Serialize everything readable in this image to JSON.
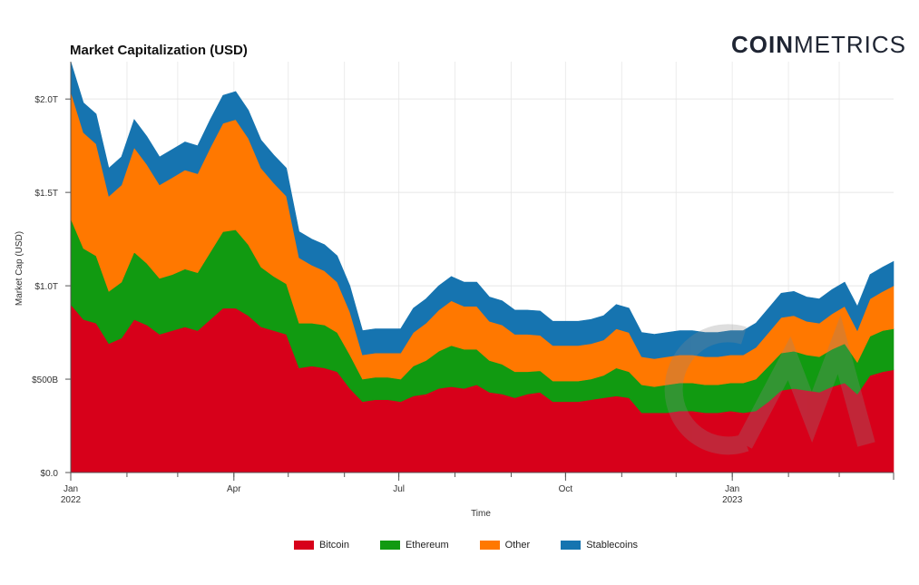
{
  "header": {
    "title": "Market Capitalization (USD)",
    "brand_bold": "COIN",
    "brand_light": "METRICS"
  },
  "chart_data": {
    "type": "area",
    "title": "Market Capitalization (USD)",
    "xlabel": "Time",
    "ylabel": "Market Cap (USD)",
    "stacked": true,
    "ylim": [
      0,
      2200000000000
    ],
    "y_ticks": [
      {
        "value": 0,
        "label": "$0.0"
      },
      {
        "value": 500000000000,
        "label": "$500B"
      },
      {
        "value": 1000000000000,
        "label": "$1.0T"
      },
      {
        "value": 1500000000000,
        "label": "$1.5T"
      },
      {
        "value": 2000000000000,
        "label": "$2.0T"
      }
    ],
    "x_ticks": [
      {
        "date": "2022-01-01",
        "label": "Jan",
        "sublabel": "2022"
      },
      {
        "date": "2022-04-01",
        "label": "Apr",
        "sublabel": ""
      },
      {
        "date": "2022-07-01",
        "label": "Jul",
        "sublabel": ""
      },
      {
        "date": "2022-10-01",
        "label": "Oct",
        "sublabel": ""
      },
      {
        "date": "2023-01-01",
        "label": "Jan",
        "sublabel": "2023"
      }
    ],
    "xlim": [
      "2022-01-01",
      "2023-03-31"
    ],
    "grid": true,
    "legend_position": "bottom-center",
    "dates": [
      "2022-01-01",
      "2022-01-08",
      "2022-01-15",
      "2022-01-22",
      "2022-01-29",
      "2022-02-05",
      "2022-02-12",
      "2022-02-19",
      "2022-02-26",
      "2022-03-05",
      "2022-03-12",
      "2022-03-19",
      "2022-03-26",
      "2022-04-02",
      "2022-04-09",
      "2022-04-16",
      "2022-04-23",
      "2022-04-30",
      "2022-05-07",
      "2022-05-14",
      "2022-05-21",
      "2022-05-28",
      "2022-06-04",
      "2022-06-11",
      "2022-06-18",
      "2022-06-25",
      "2022-07-02",
      "2022-07-09",
      "2022-07-16",
      "2022-07-23",
      "2022-07-30",
      "2022-08-06",
      "2022-08-13",
      "2022-08-20",
      "2022-08-27",
      "2022-09-03",
      "2022-09-10",
      "2022-09-17",
      "2022-09-24",
      "2022-10-01",
      "2022-10-08",
      "2022-10-15",
      "2022-10-22",
      "2022-10-29",
      "2022-11-05",
      "2022-11-12",
      "2022-11-19",
      "2022-11-26",
      "2022-12-03",
      "2022-12-10",
      "2022-12-17",
      "2022-12-24",
      "2022-12-31",
      "2023-01-07",
      "2023-01-14",
      "2023-01-21",
      "2023-01-28",
      "2023-02-04",
      "2023-02-11",
      "2023-02-18",
      "2023-02-25",
      "2023-03-04",
      "2023-03-11",
      "2023-03-18",
      "2023-03-25",
      "2023-03-31"
    ],
    "series": [
      {
        "name": "Bitcoin",
        "color": "#d7001a",
        "values": [
          900,
          820,
          800,
          690,
          720,
          820,
          790,
          740,
          760,
          780,
          760,
          820,
          880,
          880,
          840,
          780,
          760,
          740,
          560,
          570,
          560,
          540,
          450,
          380,
          390,
          390,
          380,
          410,
          420,
          450,
          460,
          450,
          470,
          430,
          420,
          400,
          420,
          430,
          380,
          380,
          380,
          390,
          400,
          410,
          400,
          320,
          320,
          320,
          330,
          330,
          320,
          320,
          330,
          320,
          330,
          380,
          440,
          450,
          440,
          430,
          460,
          480,
          420,
          520,
          540,
          550
        ]
      },
      {
        "name": "Ethereum",
        "color": "#119a11",
        "values": [
          460,
          380,
          360,
          280,
          300,
          360,
          330,
          300,
          300,
          310,
          310,
          360,
          410,
          420,
          380,
          320,
          290,
          270,
          240,
          230,
          230,
          210,
          180,
          120,
          120,
          120,
          120,
          160,
          180,
          200,
          220,
          210,
          190,
          170,
          160,
          140,
          120,
          115,
          110,
          110,
          110,
          110,
          120,
          150,
          140,
          150,
          140,
          150,
          150,
          150,
          150,
          150,
          150,
          160,
          170,
          190,
          200,
          200,
          190,
          190,
          200,
          210,
          170,
          210,
          220,
          220
        ]
      },
      {
        "name": "Other",
        "color": "#ff7800",
        "values": [
          680,
          620,
          600,
          510,
          520,
          560,
          530,
          500,
          520,
          530,
          530,
          560,
          580,
          590,
          570,
          530,
          500,
          470,
          350,
          310,
          290,
          270,
          230,
          130,
          130,
          130,
          140,
          180,
          200,
          220,
          240,
          230,
          230,
          210,
          210,
          200,
          200,
          190,
          190,
          190,
          190,
          190,
          190,
          210,
          210,
          150,
          150,
          150,
          150,
          150,
          150,
          150,
          150,
          150,
          170,
          180,
          190,
          190,
          180,
          180,
          190,
          200,
          170,
          200,
          210,
          230
        ]
      },
      {
        "name": "Stablecoins",
        "color": "#1674b0",
        "values": [
          160,
          160,
          160,
          150,
          150,
          150,
          150,
          150,
          150,
          150,
          150,
          150,
          150,
          150,
          150,
          150,
          150,
          150,
          140,
          140,
          140,
          140,
          140,
          130,
          130,
          130,
          130,
          130,
          130,
          130,
          130,
          130,
          130,
          130,
          130,
          130,
          130,
          130,
          130,
          130,
          130,
          130,
          130,
          130,
          130,
          130,
          130,
          130,
          130,
          130,
          130,
          130,
          130,
          130,
          130,
          130,
          130,
          130,
          130,
          130,
          130,
          130,
          130,
          130,
          130,
          130
        ]
      }
    ],
    "units_note": "values in billions USD"
  },
  "legend": {
    "items": [
      {
        "label": "Bitcoin",
        "color": "#d7001a"
      },
      {
        "label": "Ethereum",
        "color": "#119a11"
      },
      {
        "label": "Other",
        "color": "#ff7800"
      },
      {
        "label": "Stablecoins",
        "color": "#1674b0"
      }
    ]
  }
}
